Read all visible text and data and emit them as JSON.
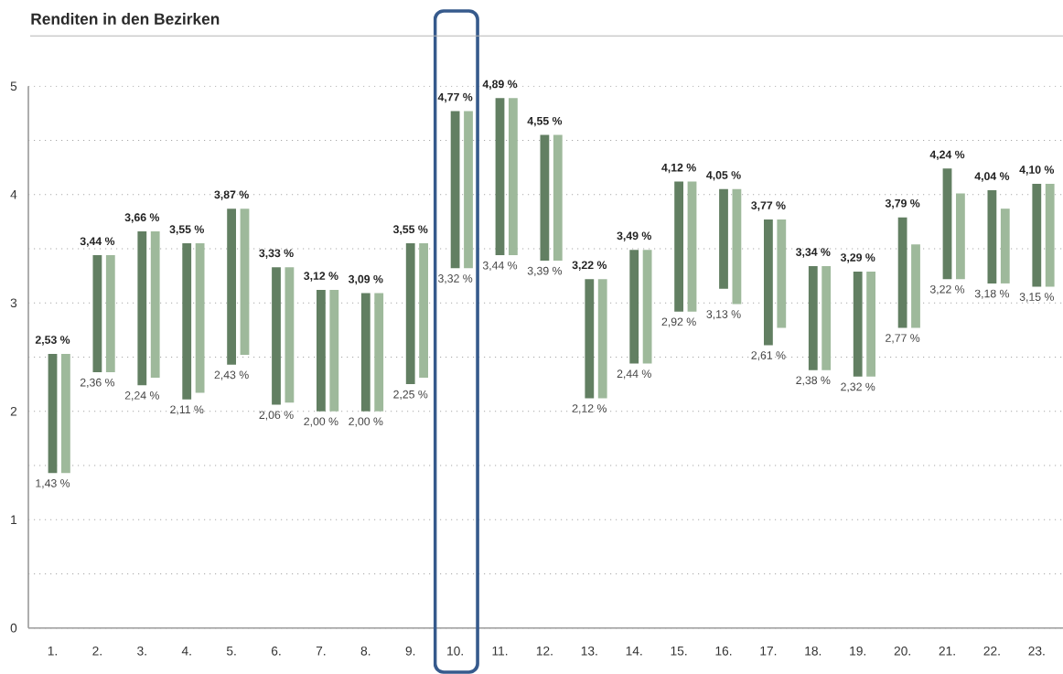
{
  "chart_data": {
    "type": "bar",
    "title": "Renditen in den Bezirken",
    "categories": [
      "1.",
      "2.",
      "3.",
      "4.",
      "5.",
      "6.",
      "7.",
      "8.",
      "9.",
      "10.",
      "11.",
      "12.",
      "13.",
      "14.",
      "15.",
      "16.",
      "17.",
      "18.",
      "19.",
      "20.",
      "21.",
      "22.",
      "23."
    ],
    "series": [
      {
        "color": "#627f62",
        "base": [
          1.43,
          2.36,
          2.24,
          2.11,
          2.43,
          2.06,
          2.0,
          2.0,
          2.25,
          3.32,
          3.44,
          3.39,
          2.12,
          2.44,
          2.92,
          3.13,
          2.61,
          2.38,
          2.32,
          2.77,
          3.22,
          3.18,
          3.15
        ],
        "values": [
          1.1,
          1.08,
          1.42,
          1.44,
          1.44,
          1.27,
          1.12,
          1.09,
          1.3,
          1.45,
          1.45,
          1.16,
          1.1,
          1.05,
          1.2,
          0.92,
          1.16,
          0.96,
          0.97,
          1.02,
          1.02,
          0.86,
          0.95
        ]
      },
      {
        "color": "#9eb99b",
        "base": [
          1.43,
          2.36,
          2.31,
          2.17,
          2.52,
          2.08,
          2.0,
          2.0,
          2.31,
          3.32,
          3.44,
          3.39,
          2.12,
          2.44,
          2.92,
          2.99,
          2.77,
          2.38,
          2.32,
          2.77,
          3.22,
          3.18,
          3.15
        ],
        "values": [
          1.1,
          1.08,
          1.35,
          1.38,
          1.35,
          1.25,
          1.12,
          1.09,
          1.24,
          1.45,
          1.45,
          1.16,
          1.1,
          1.05,
          1.2,
          1.06,
          1.0,
          0.96,
          0.97,
          0.77,
          0.79,
          0.69,
          0.95
        ]
      }
    ],
    "ylim": [
      0,
      5
    ],
    "yticks": [
      0,
      {
        "value": 0.5,
        "label": null
      },
      1,
      {
        "value": 1.5,
        "label": null
      },
      2,
      {
        "value": 2.5,
        "label": null
      },
      3,
      {
        "value": 3.5,
        "label": null
      },
      4,
      {
        "value": 4.5,
        "label": null
      },
      5
    ],
    "grid": "y",
    "annotations": [
      {
        "text": "2,53 %",
        "x": "1.",
        "y": 2.53
      },
      {
        "text": "1,43 %",
        "x": "1.",
        "y": 1.43
      },
      {
        "text": "3,44 %",
        "x": "2.",
        "y": 3.44
      },
      {
        "text": "2,36 %",
        "x": "2.",
        "y": 2.36
      },
      {
        "text": "3,66 %",
        "x": "3.",
        "y": 3.66
      },
      {
        "text": "2,24 %",
        "x": "3.",
        "y": 2.24
      },
      {
        "text": "3,55 %",
        "x": "4.",
        "y": 3.55
      },
      {
        "text": "2,11 %",
        "x": "4.",
        "y": 2.11
      },
      {
        "text": "3,87 %",
        "x": "5.",
        "y": 3.87
      },
      {
        "text": "2,43 %",
        "x": "5.",
        "y": 2.43
      },
      {
        "text": "3,33 %",
        "x": "6.",
        "y": 3.33
      },
      {
        "text": "2,06 %",
        "x": "6.",
        "y": 2.06
      },
      {
        "text": "3,12 %",
        "x": "7.",
        "y": 3.12
      },
      {
        "text": "2,00 %",
        "x": "7.",
        "y": 2.0
      },
      {
        "text": "3,09 %",
        "x": "8.",
        "y": 3.09
      },
      {
        "text": "2,00 %",
        "x": "8.",
        "y": 2.0
      },
      {
        "text": "3,55 %",
        "x": "9.",
        "y": 3.55
      },
      {
        "text": "2,25 %",
        "x": "9.",
        "y": 2.25
      },
      {
        "text": "4,77 %",
        "x": "10.",
        "y": 4.77
      },
      {
        "text": "3,32 %",
        "x": "10.",
        "y": 3.32
      },
      {
        "text": "4,89 %",
        "x": "11.",
        "y": 4.89
      },
      {
        "text": "3,44 %",
        "x": "11.",
        "y": 3.44
      },
      {
        "text": "4,55 %",
        "x": "12.",
        "y": 4.55
      },
      {
        "text": "3,39 %",
        "x": "12.",
        "y": 3.39
      },
      {
        "text": "3,22 %",
        "x": "13.",
        "y": 3.22
      },
      {
        "text": "2,12 %",
        "x": "13.",
        "y": 2.12
      },
      {
        "text": "3,49 %",
        "x": "14.",
        "y": 3.49
      },
      {
        "text": "2,44 %",
        "x": "14.",
        "y": 2.44
      },
      {
        "text": "4,12 %",
        "x": "15.",
        "y": 4.12
      },
      {
        "text": "2,92 %",
        "x": "15.",
        "y": 2.92
      },
      {
        "text": "4,05 %",
        "x": "16.",
        "y": 4.05
      },
      {
        "text": "3,13 %",
        "x": "16.",
        "y": 3.13
      },
      {
        "text": "3,77 %",
        "x": "17.",
        "y": 3.77
      },
      {
        "text": "2,61 %",
        "x": "17.",
        "y": 2.61
      },
      {
        "text": "3,34 %",
        "x": "18.",
        "y": 3.34
      },
      {
        "text": "2,38 %",
        "x": "18.",
        "y": 2.38
      },
      {
        "text": "3,29 %",
        "x": "19.",
        "y": 3.29
      },
      {
        "text": "2,32 %",
        "x": "19.",
        "y": 2.32
      },
      {
        "text": "3,79 %",
        "x": "20.",
        "y": 3.79
      },
      {
        "text": "2,77 %",
        "x": "20.",
        "y": 2.77
      },
      {
        "text": "4,24 %",
        "x": "21.",
        "y": 4.24
      },
      {
        "text": "3,22 %",
        "x": "21.",
        "y": 3.22
      },
      {
        "text": "4,04 %",
        "x": "22.",
        "y": 4.04
      },
      {
        "text": "3,18 %",
        "x": "22.",
        "y": 3.18
      },
      {
        "text": "4,10 %",
        "x": "23.",
        "y": 4.1
      },
      {
        "text": "3,15 %",
        "x": "23.",
        "y": 3.15
      }
    ],
    "bands": [
      {
        "axis": "x",
        "from": "10.",
        "to": "10.",
        "color": "#365a8c"
      }
    ]
  }
}
